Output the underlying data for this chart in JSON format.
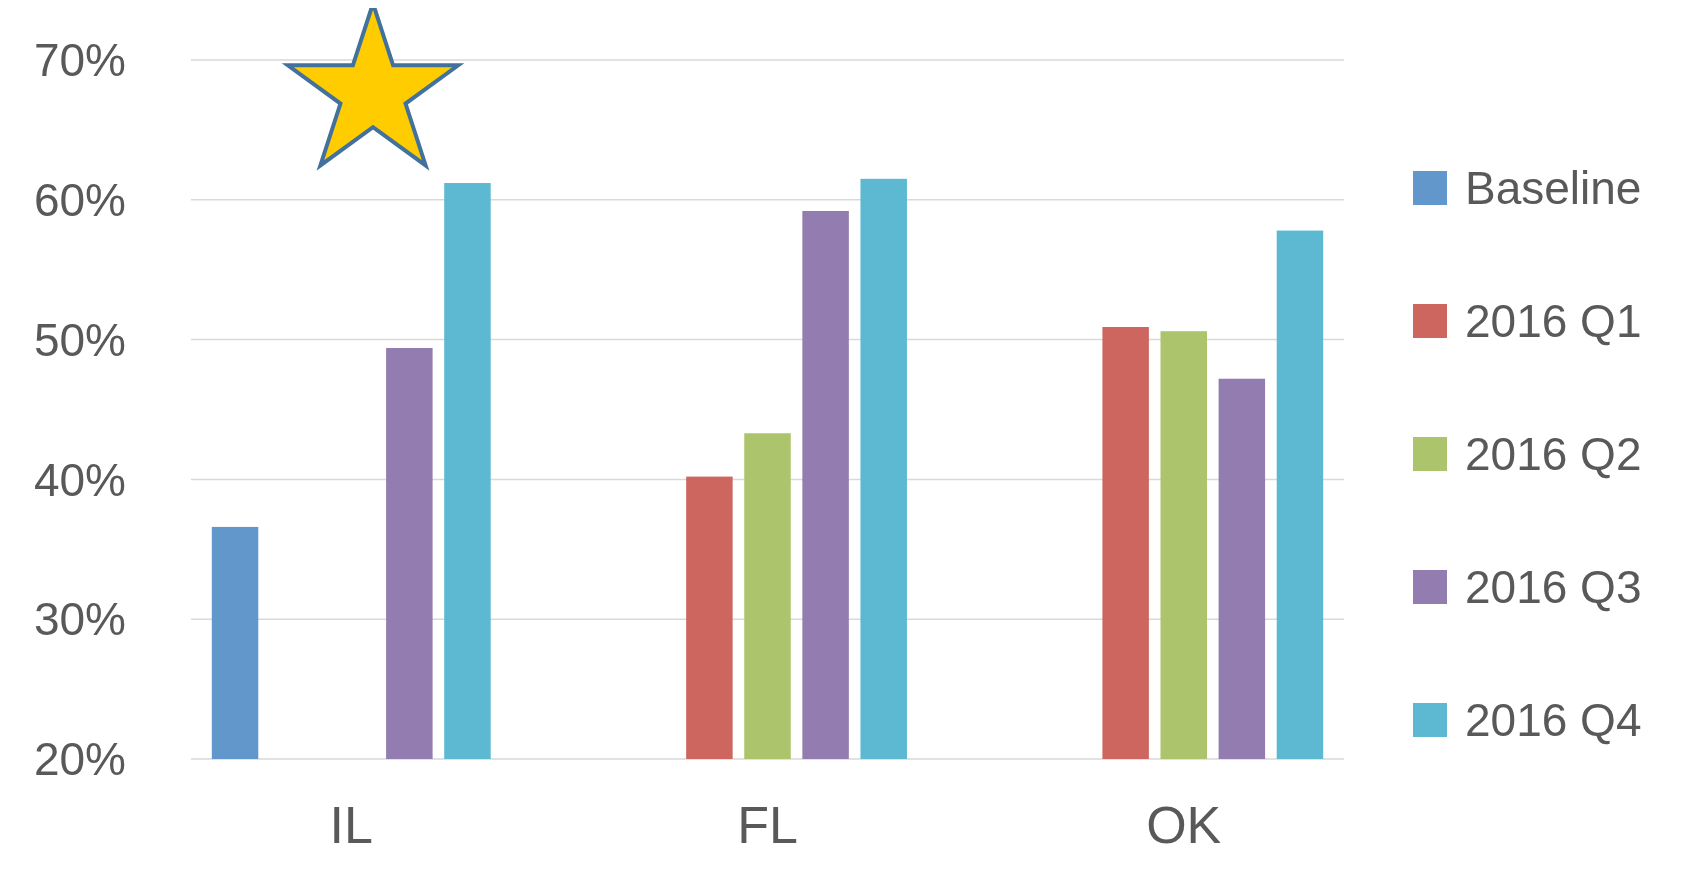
{
  "chart_data": {
    "type": "bar",
    "categories": [
      "IL",
      "FL",
      "OK"
    ],
    "series": [
      {
        "name": "Baseline",
        "color": "#6197cb",
        "values": [
          36.6,
          null,
          null
        ]
      },
      {
        "name": "2016 Q1",
        "color": "#cd665f",
        "values": [
          null,
          40.2,
          50.9
        ]
      },
      {
        "name": "2016 Q2",
        "color": "#acc46c",
        "values": [
          null,
          43.3,
          50.6
        ]
      },
      {
        "name": "2016 Q3",
        "color": "#937cb0",
        "values": [
          49.4,
          59.2,
          47.2
        ]
      },
      {
        "name": "2016 Q4",
        "color": "#5cb9d1",
        "values": [
          61.2,
          61.5,
          57.8
        ]
      }
    ],
    "ylim": [
      20,
      70
    ],
    "yticks": [
      {
        "value": 20,
        "label": "20%"
      },
      {
        "value": 30,
        "label": "30%"
      },
      {
        "value": 40,
        "label": "40%"
      },
      {
        "value": 50,
        "label": "50%"
      },
      {
        "value": 60,
        "label": "60%"
      },
      {
        "value": 70,
        "label": "70%"
      }
    ],
    "grid": "y",
    "legend": "right"
  }
}
